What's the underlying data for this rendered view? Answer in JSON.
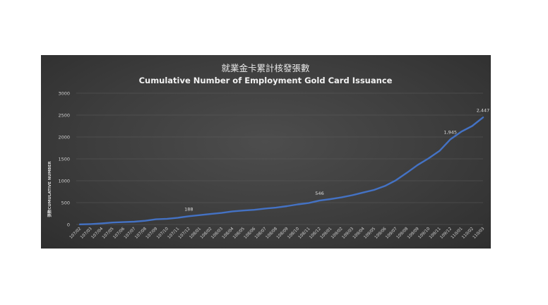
{
  "chart_data": {
    "type": "line",
    "title": "就業金卡累計核發張數",
    "subtitle": "Cumulative Number of Employment Gold Card Issuance",
    "xlabel": "",
    "ylabel": "張數CUMULATIVE NUMBER",
    "ylim": [
      0,
      3000
    ],
    "yticks": [
      0,
      500,
      1000,
      1500,
      2000,
      2500,
      3000
    ],
    "ytick_labels": [
      "0",
      "500",
      "1000",
      "1500",
      "2000",
      "2500",
      "3000"
    ],
    "grid": true,
    "legend": "none",
    "line_color": "#4472c4",
    "categories": [
      "107/02",
      "107/03",
      "107/04",
      "107/05",
      "107/06",
      "107/07",
      "107/08",
      "107/09",
      "107/10",
      "107/11",
      "107/12",
      "108/01",
      "108/02",
      "108/03",
      "108/04",
      "108/05",
      "108/06",
      "108/07",
      "108/08",
      "108/09",
      "108/10",
      "108/11",
      "108/12",
      "109/01",
      "109/02",
      "109/03",
      "109/04",
      "109/05",
      "109/06",
      "109/07",
      "109/08",
      "109/09",
      "109/10",
      "109/11",
      "109/12",
      "110/01",
      "110/02",
      "110/03"
    ],
    "series": [
      {
        "values": [
          3,
          10,
          25,
          45,
          55,
          65,
          85,
          120,
          130,
          155,
          188,
          215,
          240,
          265,
          300,
          320,
          335,
          365,
          385,
          420,
          460,
          490,
          546,
          580,
          620,
          670,
          730,
          790,
          880,
          1010,
          1180,
          1360,
          1510,
          1680,
          1945,
          2120,
          2250,
          2447
        ]
      }
    ],
    "data_labels": [
      {
        "category": "107/12",
        "text": "188"
      },
      {
        "category": "108/12",
        "text": "546"
      },
      {
        "category": "109/12",
        "text": "1,945"
      },
      {
        "category": "110/03",
        "text": "2,447"
      }
    ]
  }
}
